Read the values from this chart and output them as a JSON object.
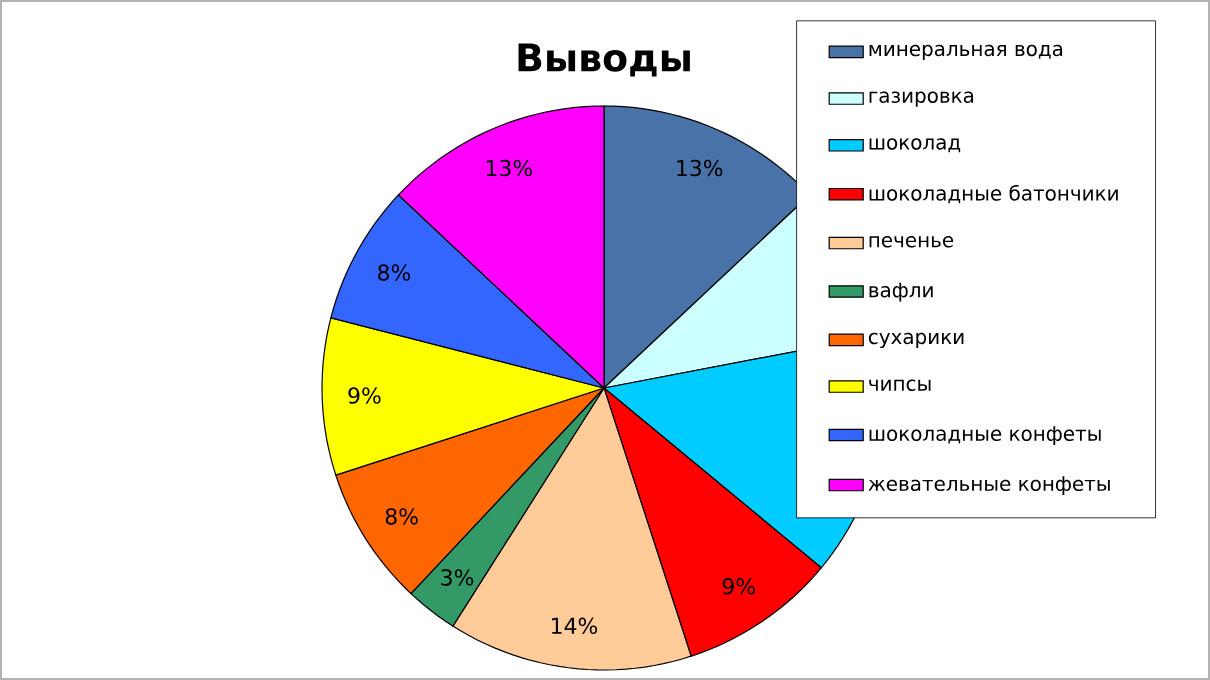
{
  "chart_data": {
    "type": "pie",
    "title": "Выводы",
    "categories": [
      "минеральная вода",
      "газировка",
      "шоколад",
      "шоколадные батончики",
      "печенье",
      "вафли",
      "сухарики",
      "чипсы",
      "шоколадные конфеты",
      "жевательные конфеты"
    ],
    "values": [
      13,
      9,
      14,
      9,
      14,
      3,
      8,
      9,
      8,
      13
    ],
    "colors": [
      "#4872a8",
      "#ccffff",
      "#00ccff",
      "#ff0000",
      "#ffcc99",
      "#339966",
      "#ff6600",
      "#ffff00",
      "#3366ff",
      "#ff00ff"
    ],
    "value_labels": [
      "13%",
      null,
      null,
      "9%",
      "14%",
      "3%",
      "8%",
      "9%",
      "8%",
      "13%"
    ],
    "legend": "right"
  }
}
